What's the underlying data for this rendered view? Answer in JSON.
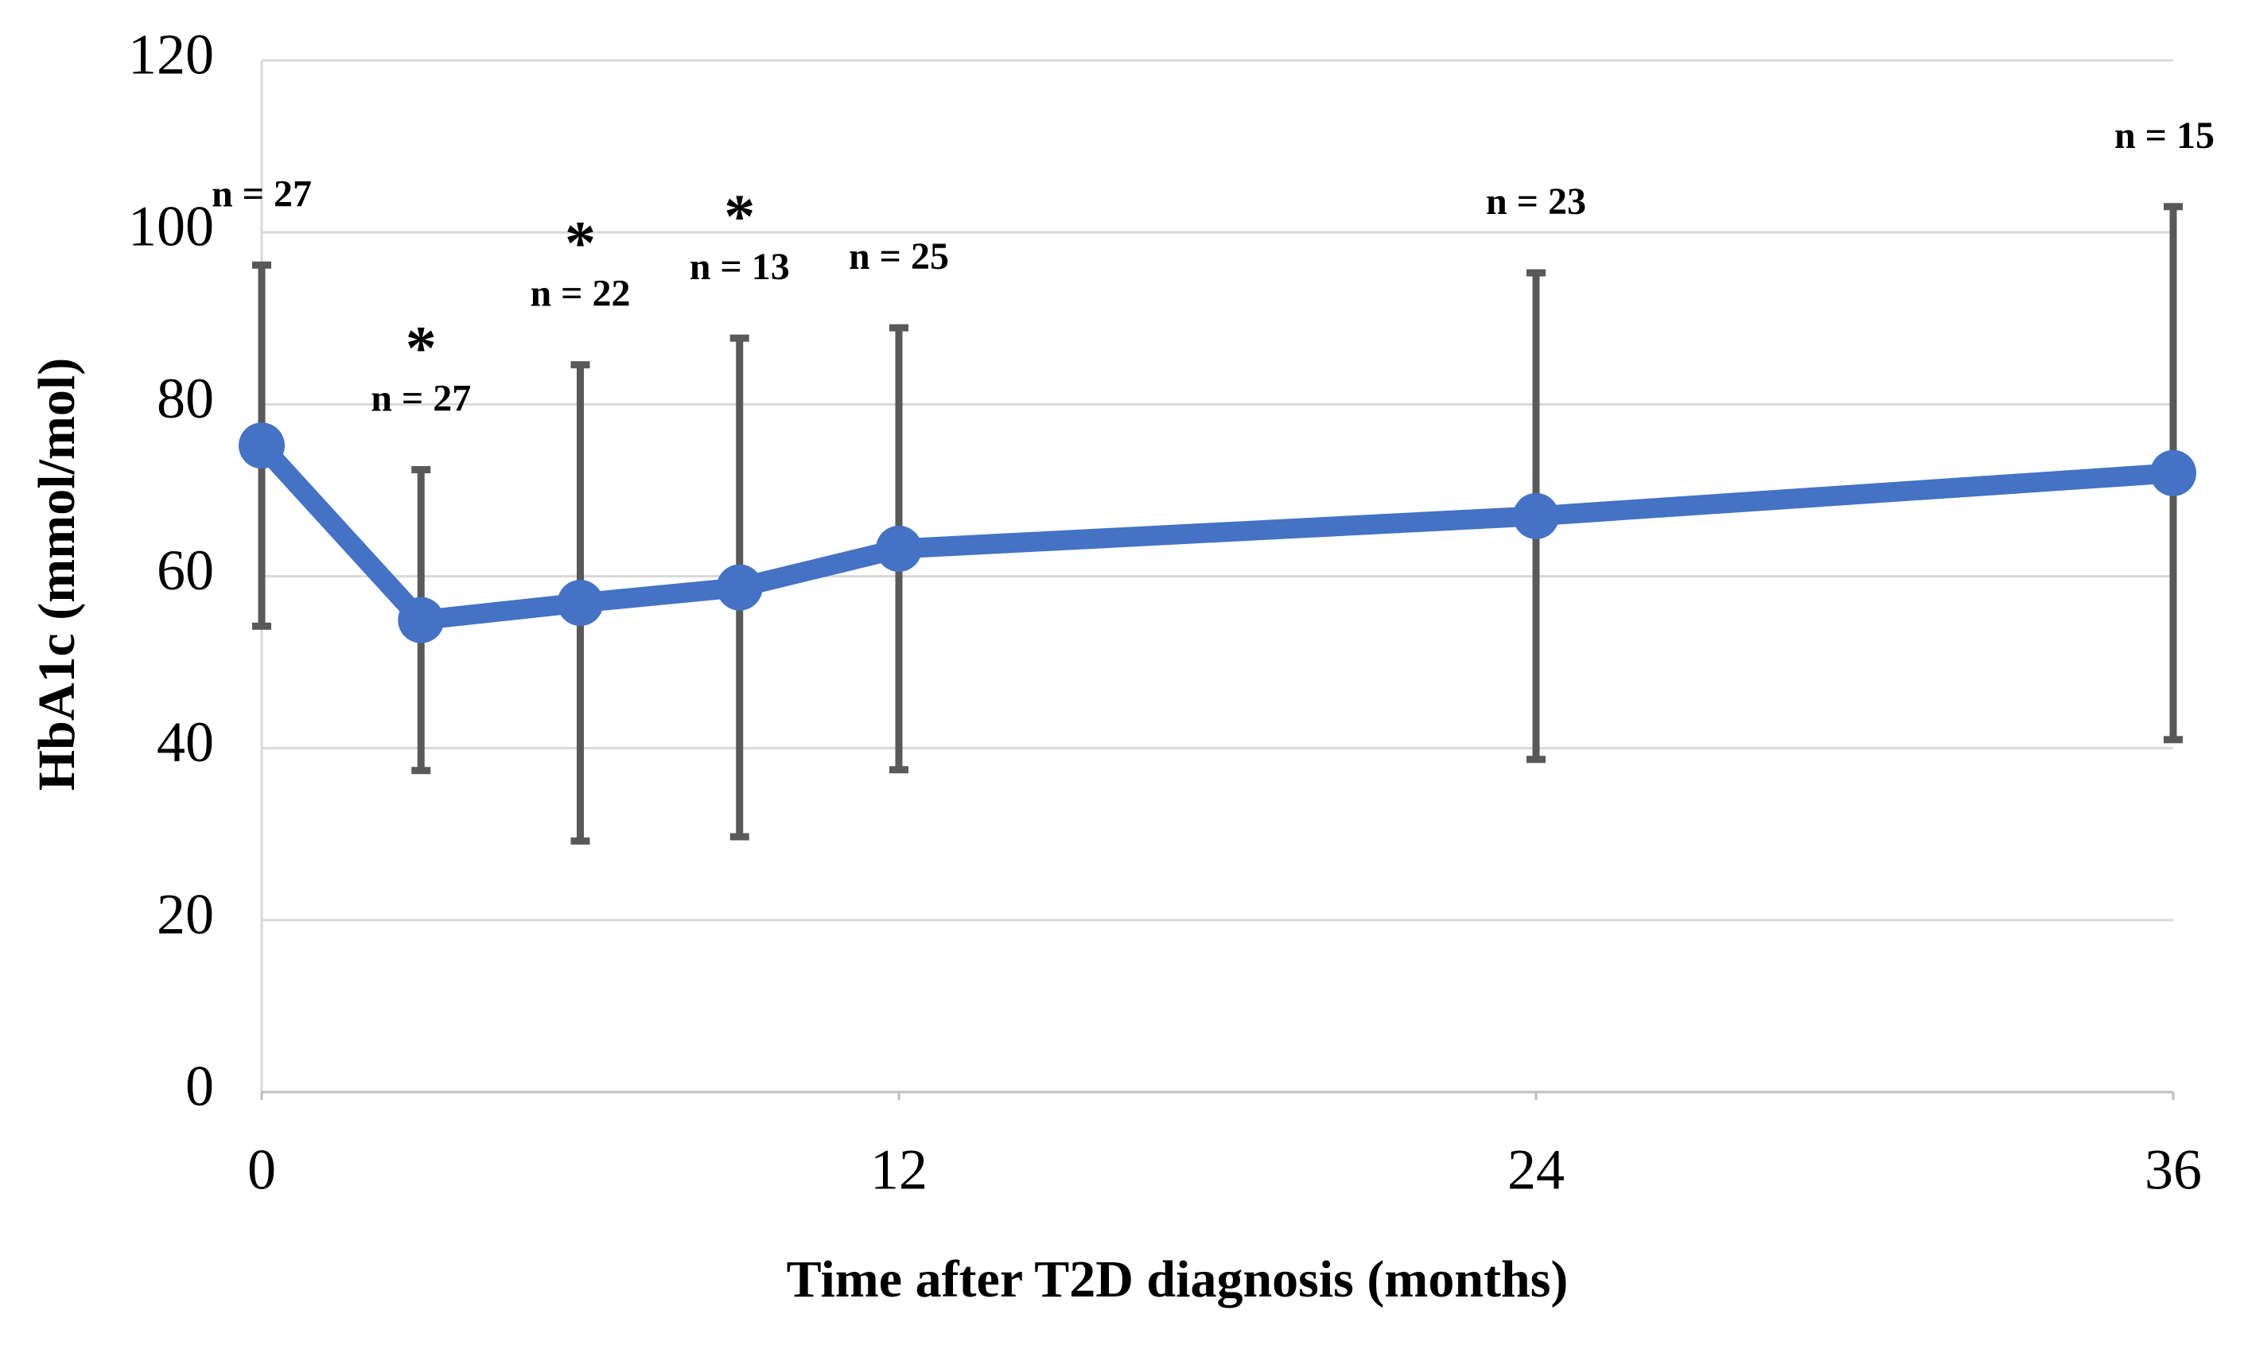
{
  "chart_data": {
    "type": "line",
    "x_label": "Time after T2D diagnosis (months)",
    "y_label": "HbA1c (mmol/mol)",
    "x": [
      0,
      3,
      6,
      9,
      12,
      24,
      36
    ],
    "series": [
      {
        "color": "#4472c4",
        "error_color": "#595959",
        "values": [
          75.2,
          54.9,
          56.9,
          58.7,
          63.2,
          67,
          72
        ],
        "errors": [
          21,
          17.5,
          27.7,
          29,
          25.7,
          28.3,
          31
        ]
      }
    ],
    "n_labels": [
      "n = 27",
      "n = 27",
      "n = 22",
      "n = 13",
      "n = 25",
      "n = 23",
      "n = 15"
    ],
    "significance": [
      null,
      "*",
      "*",
      "*",
      null,
      null,
      null
    ],
    "xlim": [
      0,
      36
    ],
    "xticks": [
      0,
      12,
      24,
      36
    ],
    "ylim": [
      0,
      120
    ],
    "yticks": [
      0,
      20,
      40,
      60,
      80,
      100,
      120
    ],
    "grid": true
  }
}
